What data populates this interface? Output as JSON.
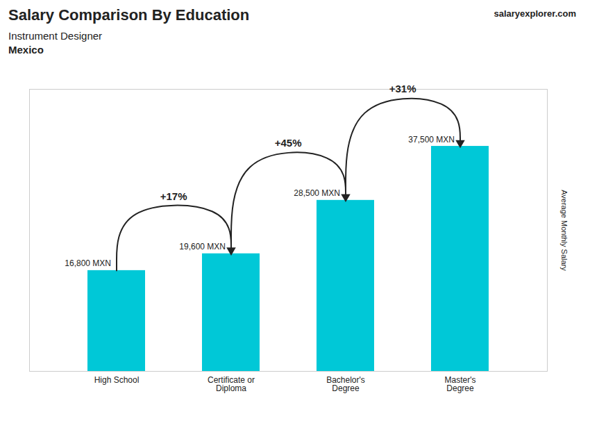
{
  "chart_data": {
    "type": "bar",
    "title": "Salary Comparison By Education",
    "subtitle": [
      "Instrument Designer",
      "Mexico"
    ],
    "watermark": [
      "salary",
      "explorer",
      ".com"
    ],
    "ylabel": "Average Monthly Salary",
    "categories": [
      "High School",
      "Certificate or\nDiploma",
      "Bachelor's\nDegree",
      "Master's\nDegree"
    ],
    "values": [
      16800,
      19600,
      28500,
      37500
    ],
    "value_labels": [
      "16,800 MXN",
      "19,600 MXN",
      "28,500 MXN",
      "37,500 MXN"
    ],
    "data_labels": true,
    "annotations": [
      "+17%",
      "+45%",
      "+31%"
    ],
    "color": "#00c8d7",
    "ylim": [
      0,
      47000
    ],
    "grid": false,
    "tick_labels": "x"
  }
}
